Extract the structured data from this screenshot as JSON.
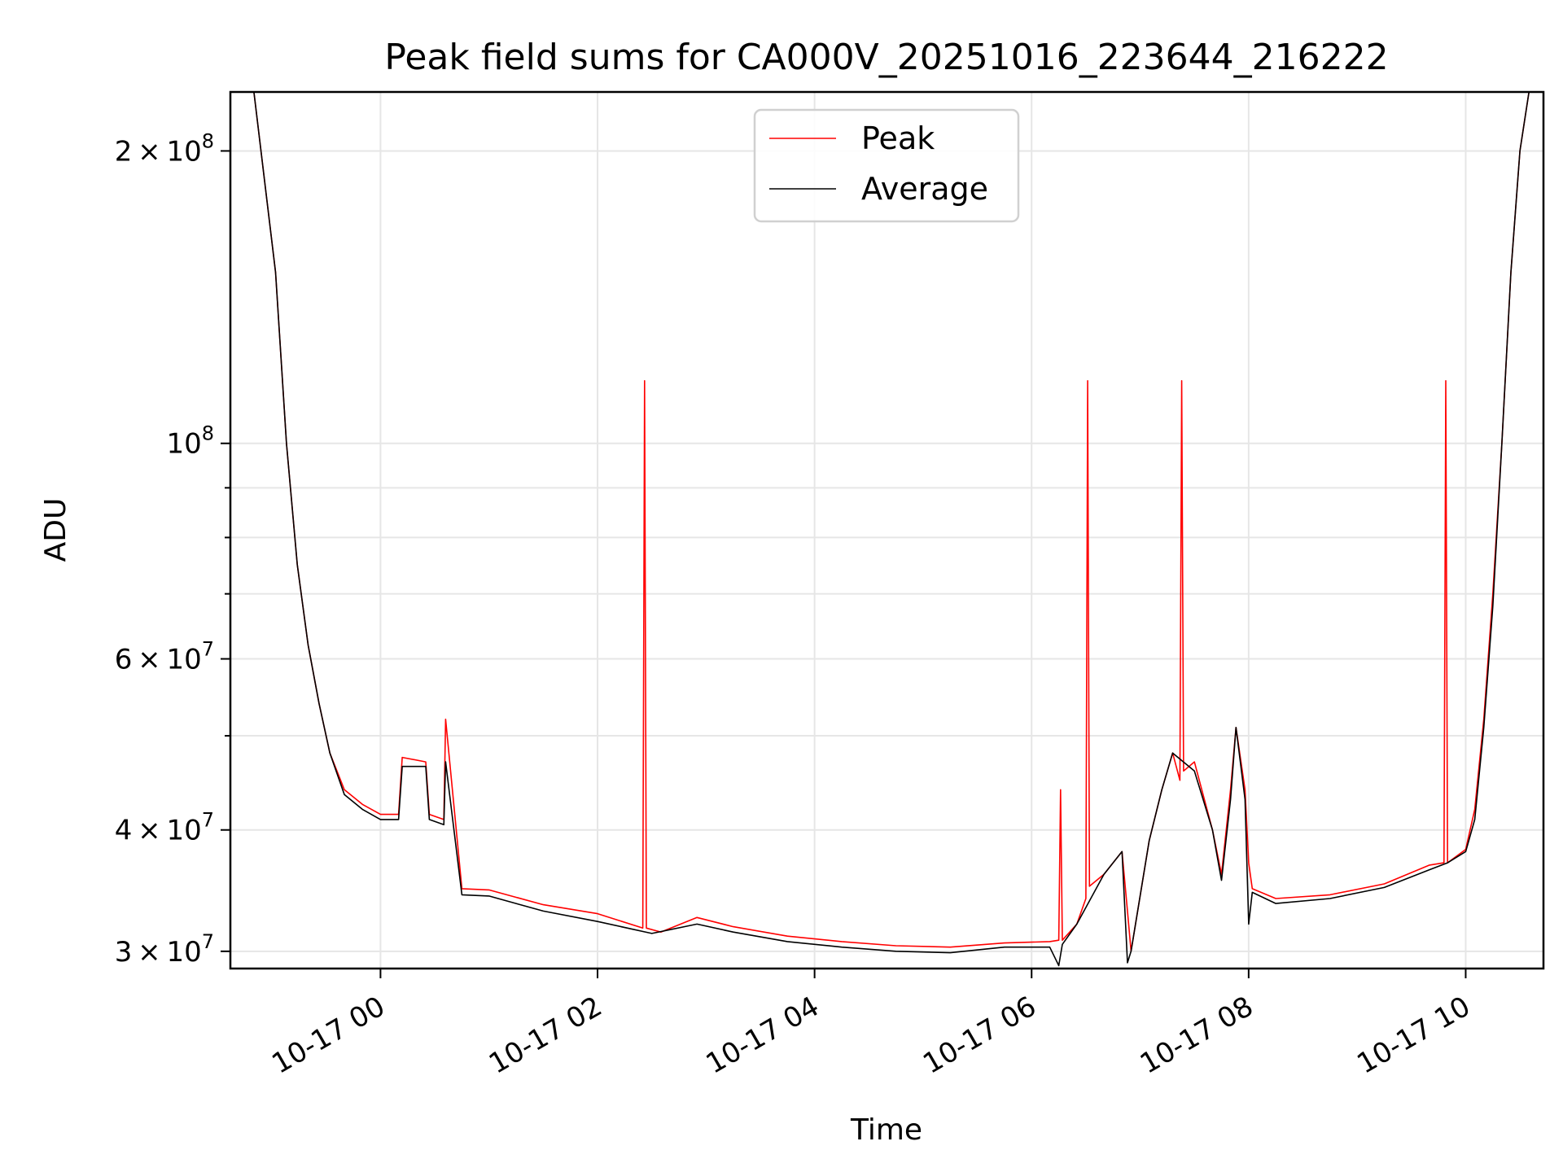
{
  "chart_data": {
    "type": "line",
    "title": "Peak field sums for CA000V_20251016_223644_216222",
    "xlabel": "Time",
    "ylabel": "ADU",
    "yscale": "log",
    "grid": true,
    "legend_position": "upper center",
    "x_range": [
      "2025-10-16 22:37",
      "2025-10-17 10:43"
    ],
    "ylim": [
      28800000,
      230000000
    ],
    "x_ticks": [
      {
        "time": "2025-10-17 00:00",
        "label": "10-17 00"
      },
      {
        "time": "2025-10-17 02:00",
        "label": "10-17 02"
      },
      {
        "time": "2025-10-17 04:00",
        "label": "10-17 04"
      },
      {
        "time": "2025-10-17 06:00",
        "label": "10-17 06"
      },
      {
        "time": "2025-10-17 08:00",
        "label": "10-17 08"
      },
      {
        "time": "2025-10-17 10:00",
        "label": "10-17 10"
      }
    ],
    "y_major_ticks": [
      {
        "value": 30000000,
        "mant": "3",
        "exp": "7"
      },
      {
        "value": 40000000,
        "mant": "4",
        "exp": "7"
      },
      {
        "value": 60000000,
        "mant": "6",
        "exp": "7"
      },
      {
        "value": 100000000,
        "mant": "",
        "exp": "8"
      },
      {
        "value": 200000000,
        "mant": "2",
        "exp": "8"
      }
    ],
    "y_minor_ticks": [
      50000000,
      70000000,
      80000000,
      90000000
    ],
    "series": [
      {
        "name": "Peak",
        "color": "#ff0000",
        "x": [
          "2025-10-16 22:37",
          "2025-10-16 22:50",
          "2025-10-16 23:02",
          "2025-10-16 23:08",
          "2025-10-16 23:14",
          "2025-10-16 23:20",
          "2025-10-16 23:26",
          "2025-10-16 23:32",
          "2025-10-16 23:40",
          "2025-10-16 23:50",
          "2025-10-17 00:00",
          "2025-10-17 00:10",
          "2025-10-17 00:12",
          "2025-10-17 00:25",
          "2025-10-17 00:27",
          "2025-10-17 00:35",
          "2025-10-17 00:36",
          "2025-10-17 00:45",
          "2025-10-17 01:00",
          "2025-10-17 01:30",
          "2025-10-17 02:00",
          "2025-10-17 02:25",
          "2025-10-17 02:26",
          "2025-10-17 02:27",
          "2025-10-17 02:35",
          "2025-10-17 02:55",
          "2025-10-17 03:15",
          "2025-10-17 03:45",
          "2025-10-17 04:15",
          "2025-10-17 04:45",
          "2025-10-17 05:15",
          "2025-10-17 05:45",
          "2025-10-17 06:10",
          "2025-10-17 06:15",
          "2025-10-17 06:16",
          "2025-10-17 06:17",
          "2025-10-17 06:25",
          "2025-10-17 06:30",
          "2025-10-17 06:31",
          "2025-10-17 06:32",
          "2025-10-17 06:40",
          "2025-10-17 06:50",
          "2025-10-17 06:53",
          "2025-10-17 06:55",
          "2025-10-17 07:05",
          "2025-10-17 07:12",
          "2025-10-17 07:18",
          "2025-10-17 07:22",
          "2025-10-17 07:23",
          "2025-10-17 07:24",
          "2025-10-17 07:30",
          "2025-10-17 07:40",
          "2025-10-17 07:45",
          "2025-10-17 07:50",
          "2025-10-17 07:53",
          "2025-10-17 07:58",
          "2025-10-17 08:00",
          "2025-10-17 08:02",
          "2025-10-17 08:15",
          "2025-10-17 08:45",
          "2025-10-17 09:15",
          "2025-10-17 09:40",
          "2025-10-17 09:48",
          "2025-10-17 09:49",
          "2025-10-17 09:50",
          "2025-10-17 10:00",
          "2025-10-17 10:05",
          "2025-10-17 10:10",
          "2025-10-17 10:15",
          "2025-10-17 10:20",
          "2025-10-17 10:25",
          "2025-10-17 10:30",
          "2025-10-17 10:35",
          "2025-10-17 10:38"
        ],
        "values": [
          230000000,
          230000000,
          150000000,
          100000000,
          75000000,
          62000000,
          54000000,
          48000000,
          44000000,
          42500000,
          41500000,
          41500000,
          47500000,
          47000000,
          41500000,
          41000000,
          52000000,
          34800000,
          34700000,
          33500000,
          32800000,
          31700000,
          116000000,
          31700000,
          31400000,
          32500000,
          31800000,
          31100000,
          30700000,
          30400000,
          30300000,
          30600000,
          30700000,
          30800000,
          44000000,
          30800000,
          32000000,
          34000000,
          116000000,
          35000000,
          36000000,
          38000000,
          33000000,
          30000000,
          39000000,
          44000000,
          48000000,
          45000000,
          116000000,
          46000000,
          47000000,
          40000000,
          36000000,
          44000000,
          51000000,
          44000000,
          37000000,
          34800000,
          34000000,
          34300000,
          35200000,
          36800000,
          37000000,
          116000000,
          37000000,
          38200000,
          42000000,
          52000000,
          70000000,
          100000000,
          150000000,
          200000000,
          230000000,
          230000000
        ]
      },
      {
        "name": "Average",
        "color": "#000000",
        "x": [
          "2025-10-16 22:37",
          "2025-10-16 22:50",
          "2025-10-16 23:02",
          "2025-10-16 23:08",
          "2025-10-16 23:14",
          "2025-10-16 23:20",
          "2025-10-16 23:26",
          "2025-10-16 23:32",
          "2025-10-16 23:40",
          "2025-10-16 23:50",
          "2025-10-17 00:00",
          "2025-10-17 00:10",
          "2025-10-17 00:12",
          "2025-10-17 00:25",
          "2025-10-17 00:27",
          "2025-10-17 00:35",
          "2025-10-17 00:36",
          "2025-10-17 00:45",
          "2025-10-17 01:00",
          "2025-10-17 01:30",
          "2025-10-17 02:00",
          "2025-10-17 02:30",
          "2025-10-17 02:55",
          "2025-10-17 03:15",
          "2025-10-17 03:45",
          "2025-10-17 04:15",
          "2025-10-17 04:45",
          "2025-10-17 05:15",
          "2025-10-17 05:45",
          "2025-10-17 06:10",
          "2025-10-17 06:15",
          "2025-10-17 06:17",
          "2025-10-17 06:25",
          "2025-10-17 06:40",
          "2025-10-17 06:50",
          "2025-10-17 06:53",
          "2025-10-17 06:55",
          "2025-10-17 07:05",
          "2025-10-17 07:12",
          "2025-10-17 07:18",
          "2025-10-17 07:30",
          "2025-10-17 07:40",
          "2025-10-17 07:45",
          "2025-10-17 07:50",
          "2025-10-17 07:53",
          "2025-10-17 07:58",
          "2025-10-17 08:00",
          "2025-10-17 08:02",
          "2025-10-17 08:15",
          "2025-10-17 08:45",
          "2025-10-17 09:15",
          "2025-10-17 09:40",
          "2025-10-17 09:50",
          "2025-10-17 10:00",
          "2025-10-17 10:05",
          "2025-10-17 10:10",
          "2025-10-17 10:15",
          "2025-10-17 10:20",
          "2025-10-17 10:25",
          "2025-10-17 10:30",
          "2025-10-17 10:35",
          "2025-10-17 10:38"
        ],
        "values": [
          230000000,
          230000000,
          150000000,
          100000000,
          75000000,
          62000000,
          54000000,
          48000000,
          43500000,
          42000000,
          41000000,
          41000000,
          46500000,
          46500000,
          41000000,
          40500000,
          47000000,
          34300000,
          34200000,
          33000000,
          32200000,
          31300000,
          32000000,
          31400000,
          30700000,
          30300000,
          30000000,
          29900000,
          30300000,
          30300000,
          29000000,
          30500000,
          32000000,
          36000000,
          38000000,
          29200000,
          30000000,
          39000000,
          44000000,
          48000000,
          46000000,
          40000000,
          35500000,
          43000000,
          51000000,
          43000000,
          32000000,
          34500000,
          33600000,
          34000000,
          34900000,
          36400000,
          37000000,
          38000000,
          41000000,
          51000000,
          68000000,
          100000000,
          150000000,
          200000000,
          230000000,
          230000000
        ]
      }
    ]
  }
}
